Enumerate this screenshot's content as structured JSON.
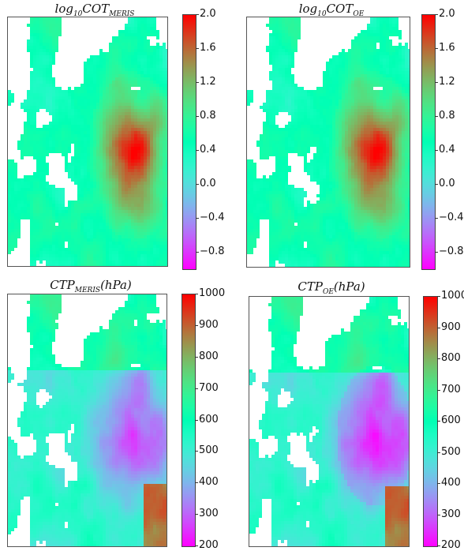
{
  "figure": {
    "panels": [
      {
        "id": "cot_meris",
        "title_main": "log",
        "title_sub1": "10",
        "title_mid": "COT",
        "title_sub2": "MERIS",
        "title_tail": "",
        "colormap": "rainbow",
        "colorbar_ticks": [
          "2.0",
          "1.6",
          "1.2",
          "0.8",
          "0.4",
          "0.0",
          "−0.4",
          "−0.8"
        ],
        "colorbar_range": [
          -1.0,
          2.0
        ],
        "field": "optical-thickness"
      },
      {
        "id": "cot_oe",
        "title_main": "log",
        "title_sub1": "10",
        "title_mid": "COT",
        "title_sub2": "OE",
        "title_tail": "",
        "colormap": "rainbow",
        "colorbar_ticks": [
          "2.0",
          "1.6",
          "1.2",
          "0.8",
          "0.4",
          "0.0",
          "−0.4",
          "−0.8"
        ],
        "colorbar_range": [
          -1.0,
          2.0
        ],
        "field": "optical-thickness"
      },
      {
        "id": "ctp_meris",
        "title_main": "",
        "title_sub1": "",
        "title_mid": "CTP",
        "title_sub2": "MERIS",
        "title_tail": "(hPa)",
        "colormap": "rainbow",
        "colorbar_ticks": [
          "1000",
          "900",
          "800",
          "700",
          "600",
          "500",
          "400",
          "300",
          "200"
        ],
        "colorbar_range": [
          200,
          1000
        ],
        "field": "top-pressure"
      },
      {
        "id": "ctp_oe",
        "title_main": "",
        "title_sub1": "",
        "title_mid": "CTP",
        "title_sub2": "OE",
        "title_tail": "(hPa)",
        "colormap": "rainbow",
        "colorbar_ticks": [
          "1000",
          "900",
          "800",
          "700",
          "600",
          "500",
          "400",
          "300",
          "200"
        ],
        "colorbar_range": [
          200,
          1000
        ],
        "field": "top-pressure"
      }
    ]
  },
  "chart_data": [
    {
      "type": "heatmap",
      "title": "log10 COT_MERIS",
      "colorbar_ticks": [
        2.0,
        1.6,
        1.2,
        0.8,
        0.4,
        0.0,
        -0.4,
        -0.8
      ],
      "colorbar_range": [
        -1.0,
        2.0
      ]
    },
    {
      "type": "heatmap",
      "title": "log10 COT_OE",
      "colorbar_ticks": [
        2.0,
        1.6,
        1.2,
        0.8,
        0.4,
        0.0,
        -0.4,
        -0.8
      ],
      "colorbar_range": [
        -1.0,
        2.0
      ]
    },
    {
      "type": "heatmap",
      "title": "CTP_MERIS (hPa)",
      "colorbar_ticks": [
        1000,
        900,
        800,
        700,
        600,
        500,
        400,
        300,
        200
      ],
      "colorbar_range": [
        200,
        1000
      ]
    },
    {
      "type": "heatmap",
      "title": "CTP_OE (hPa)",
      "colorbar_ticks": [
        1000,
        900,
        800,
        700,
        600,
        500,
        400,
        300,
        200
      ],
      "colorbar_range": [
        200,
        1000
      ]
    }
  ]
}
